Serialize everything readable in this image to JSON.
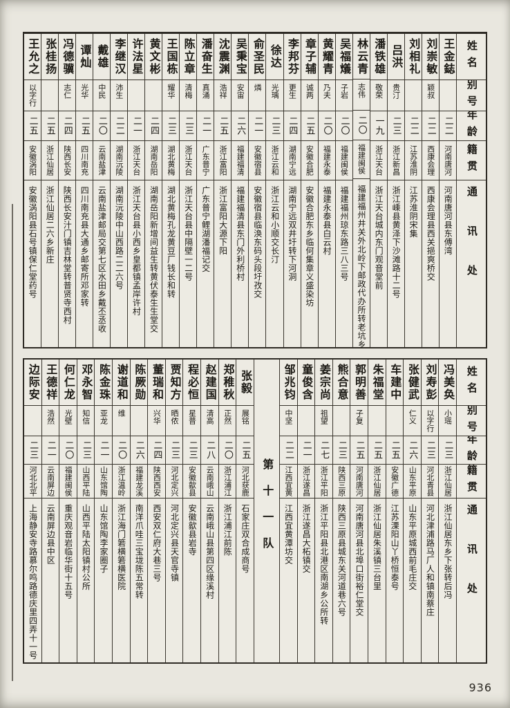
{
  "page": {
    "number": "936"
  },
  "headers": {
    "name": "姓名",
    "alias": "别号",
    "age": "年龄",
    "origin": "籍贯",
    "address": "通讯处"
  },
  "tables": [
    {
      "id": "table-top",
      "divider": null,
      "entries": [
        {
          "name": "王金鋕",
          "alias": "",
          "age": "二二",
          "origin": "河南唐河",
          "address": "河南唐河县东傅湾"
        },
        {
          "name": "刘崇敏",
          "alias": "颖叔",
          "age": "二二",
          "origin": "西康会理",
          "address": "西康会理县西关挹爽桥交"
        },
        {
          "name": "刘相礼",
          "alias": "",
          "age": "二二",
          "origin": "江苏淮阴",
          "address": "江苏淮阴宋集"
        },
        {
          "name": "吕洪",
          "alias": "贵汀",
          "age": "二三",
          "origin": "浙江新昌",
          "address": "浙江嵊县黄泽下沙滩路十二号"
        },
        {
          "name": "潘铁雄",
          "alias": "敬荣",
          "age": "一九",
          "origin": "浙江天台",
          "address": "浙江天台城内东门观音堂前"
        },
        {
          "name": "林云青",
          "alias": "志伟",
          "age": "二〇",
          "origin": "福建闽侯",
          "address": "福建福州井关外北岭下邮政代办所转老坑乡"
        },
        {
          "name": "吴福燨",
          "alias": "子岩",
          "age": "二〇",
          "origin": "福建闽侯",
          "address": "福建福州琼东路三八三号"
        },
        {
          "name": "黄耀青",
          "alias": "乃夫",
          "age": "二〇",
          "origin": "福建永泰",
          "address": "福建永泰县白云村"
        },
        {
          "name": "章子辅",
          "alias": "诚两",
          "age": "二五",
          "origin": "安徽合肥",
          "address": "安徽合肥东乡临何集章义盛染坊"
        },
        {
          "name": "李邦芬",
          "alias": "更生",
          "age": "二四",
          "origin": "湖南宁远",
          "address": "湖南宁远双井圩转下河洞"
        },
        {
          "name": "徐达",
          "alias": "光瑀",
          "age": "二三",
          "origin": "浙江云和",
          "address": "浙江云和小顺交长汀"
        },
        {
          "name": "俞圣民",
          "alias": "燐",
          "age": "二一",
          "origin": "安徽宿县",
          "address": "安徽宿县临涣东码头段圩孜交"
        },
        {
          "name": "吴秉宝",
          "alias": "安宙",
          "age": "二六",
          "origin": "福建福清",
          "address": "福建福清县东门外利桥村"
        },
        {
          "name": "沈震渊",
          "alias": "浩祥",
          "age": "二五",
          "origin": "浙江富阳",
          "address": "浙江富阳大源下阳"
        },
        {
          "name": "潘奋生",
          "alias": "真涌",
          "age": "二一",
          "origin": "广东普宁",
          "address": "广东普宁鲤湖潘福记交"
        },
        {
          "name": "陈立章",
          "alias": "清梅",
          "age": "二三",
          "origin": "浙江天台",
          "address": "浙江天台县中隔壁一二号"
        },
        {
          "name": "王国栋",
          "alias": "耀华",
          "age": "二三",
          "origin": "湖北黄梅",
          "address": "湖北黄梅孔龙黄豆厂钱长和转"
        },
        {
          "name": "黄文彬",
          "alias": "",
          "age": "二四",
          "origin": "湖南岳阳",
          "address": "湖南岳阳新增间益生转黄伏泰生生堂交"
        },
        {
          "name": "许法星",
          "alias": "",
          "age": "二一",
          "origin": "浙江天台",
          "address": "浙江天台县小西乡皇都镇孟岸许村"
        },
        {
          "name": "李继汉",
          "alias": "沛生",
          "age": "二二",
          "origin": "湖南沅陵",
          "address": "湖南沅陵中山西路二二六号"
        },
        {
          "name": "戴雄",
          "alias": "中民",
          "age": "二〇",
          "origin": "云南盐津",
          "address": "云南盐津邮局交第七区水田乡戴丕丞收"
        },
        {
          "name": "谭灿",
          "alias": "光华",
          "age": "二五",
          "origin": "四川南充",
          "address": "四川南充县大通乡邮寄所邓家转"
        },
        {
          "name": "冯德骥",
          "alias": "志仁",
          "age": "二四",
          "origin": "陕西长安",
          "address": "陕西长安汁门镇吉林堂转普贤寺西村"
        },
        {
          "name": "张桂扬",
          "alias": "",
          "age": "二五",
          "origin": "浙江仙居",
          "address": "浙江仙居二六乡新庄"
        },
        {
          "name": "王允之",
          "alias": "以字行",
          "age": "二五",
          "origin": "安徽涡阳",
          "address": "安徽涡阳县石号镇保仁堂药号"
        }
      ]
    },
    {
      "id": "table-bottom",
      "divider": {
        "label": "第十一队",
        "at": 10
      },
      "entries": [
        {
          "name": "冯美奂",
          "alias": "小瑶",
          "age": "二三",
          "origin": "浙江仙居",
          "address": "浙江仙居东乡下张转后冯"
        },
        {
          "name": "刘寿彭",
          "alias": "以字行",
          "age": "二三",
          "origin": "河北青县",
          "address": "河北津浦路马厂人和镇南蔡庄"
        },
        {
          "name": "张健武",
          "alias": "仁义",
          "age": "二六",
          "origin": "山东平原",
          "address": "山东平原城西前毛庄交"
        },
        {
          "name": "车建中",
          "alias": "",
          "age": "二五",
          "origin": "安徽广德",
          "address": "江苏溧阳山丫桥恒泰号"
        },
        {
          "name": "朱福堂",
          "alias": "",
          "age": "二五",
          "origin": "浙江仙居",
          "address": "浙江仙居朱溪镇三台里"
        },
        {
          "name": "郭明善",
          "alias": "子复",
          "age": "二五",
          "origin": "河南唐河",
          "address": "河南唐河县北埠口街裕仁堂交"
        },
        {
          "name": "熊合意",
          "alias": "",
          "age": "二三",
          "origin": "陕西三原",
          "address": "陕西三原县城东关河道巷六号"
        },
        {
          "name": "姜宗尚",
          "alias": "祖望",
          "age": "二七",
          "origin": "浙江平阳",
          "address": "浙江平阳县北港区南湖乡公所转"
        },
        {
          "name": "童俊含",
          "alias": "",
          "age": "二一",
          "origin": "浙江遂昌",
          "address": "浙江遂昌大柘镇交"
        },
        {
          "name": "邹兆钧",
          "alias": "中坚",
          "age": "二二",
          "origin": "江西宜黄",
          "address": "江西宜黄潭坊交"
        },
        {
          "name": "张毅",
          "alias": "展铭",
          "age": "二五",
          "origin": "河北获鹿",
          "address": "石家庄双合成商号"
        },
        {
          "name": "郑稚秋",
          "alias": "正然",
          "age": "二〇",
          "origin": "浙江浦江",
          "address": "浙江浦江前陈"
        },
        {
          "name": "赵建国",
          "alias": "清高",
          "age": "二八",
          "origin": "云南峨山",
          "address": "云南峨山县第四区缘溪村"
        },
        {
          "name": "程必恒",
          "alias": "星普",
          "age": "二三",
          "origin": "安徽歙县",
          "address": "安徽歙县岩寺"
        },
        {
          "name": "贾知方",
          "alias": "晒侬",
          "age": "二三",
          "origin": "河北定兴",
          "address": "河北定兴县天官寺镇"
        },
        {
          "name": "董瑞和",
          "alias": "兴华",
          "age": "二四",
          "origin": "陕西西安",
          "address": "西安双仁府大巷三号"
        },
        {
          "name": "陈厥勋",
          "alias": "",
          "age": "二六",
          "origin": "福建龙溪",
          "address": "南洋爪哇三宝垅陈五常转"
        },
        {
          "name": "谢道和",
          "alias": "维",
          "age": "二〇",
          "origin": "浙江温岭",
          "address": "浙江海门箬横箬横医院"
        },
        {
          "name": "陈金珠",
          "alias": "亚龙",
          "age": "二一",
          "origin": "山东馆陶",
          "address": "山东馆陶李家圈子"
        },
        {
          "name": "邓永智",
          "alias": "知信",
          "age": "二三",
          "origin": "山西平陆",
          "address": "山西平陆太阳镇村公所"
        },
        {
          "name": "何仁龙",
          "alias": "光壁",
          "age": "二〇",
          "origin": "福建闽侯",
          "address": "重庆观音岩临华街十五号"
        },
        {
          "name": "王德祥",
          "alias": "浩然",
          "age": "二一",
          "origin": "云南屏边",
          "address": "云南屏边县中区"
        },
        {
          "name": "边际安",
          "alias": "",
          "age": "二三",
          "origin": "河北北平",
          "address": "上海静安寺路慕尔鸣路德庆里四弄十一号"
        }
      ]
    }
  ]
}
